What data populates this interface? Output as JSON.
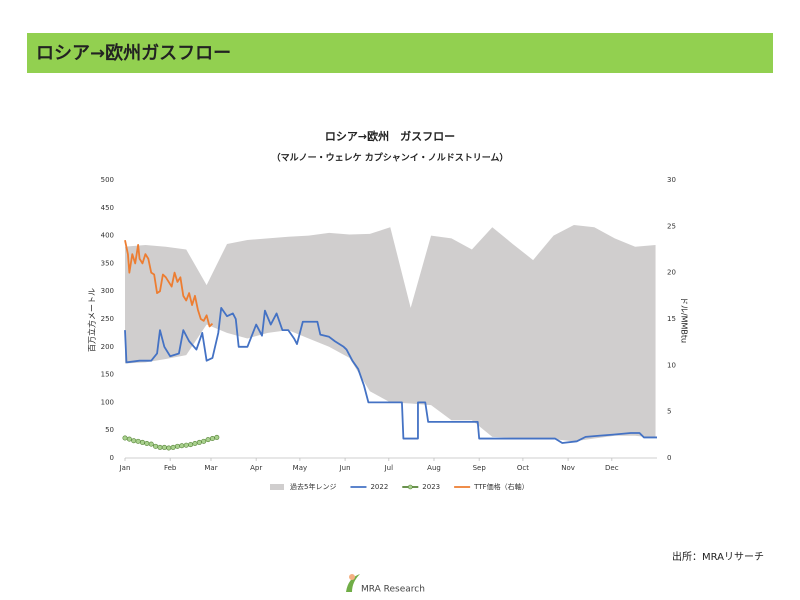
{
  "header": {
    "title": "ロシア→欧州ガスフロー"
  },
  "chart_data": {
    "type": "line",
    "title": "ロシア→欧州　ガスフロー",
    "subtitle": "（マルノー・ウェレケ カプシャンイ・ノルドストリーム）",
    "ylabel": "百万立方メートル",
    "y2label": "ドル/MMBtu",
    "xlim": [
      0,
      365
    ],
    "xticks": [
      {
        "value": 0,
        "label": "Jan"
      },
      {
        "value": 31,
        "label": "Feb"
      },
      {
        "value": 59,
        "label": "Mar"
      },
      {
        "value": 90,
        "label": "Apr"
      },
      {
        "value": 120,
        "label": "May"
      },
      {
        "value": 151,
        "label": "Jun"
      },
      {
        "value": 181,
        "label": "Jul"
      },
      {
        "value": 212,
        "label": "Aug"
      },
      {
        "value": 243,
        "label": "Sep"
      },
      {
        "value": 273,
        "label": "Oct"
      },
      {
        "value": 304,
        "label": "Nov"
      },
      {
        "value": 334,
        "label": "Dec"
      }
    ],
    "ylim": [
      0,
      500
    ],
    "yticks": [
      0,
      50,
      100,
      150,
      200,
      250,
      300,
      350,
      400,
      450,
      500
    ],
    "y2lim": [
      0,
      30
    ],
    "y2ticks": [
      0,
      5,
      10,
      15,
      20,
      25,
      30
    ],
    "legend": "bottom",
    "series": [
      {
        "name": "過去5年レンジ",
        "type": "range",
        "color": "#d0cece",
        "x": [
          0,
          14,
          28,
          42,
          56,
          70,
          84,
          98,
          112,
          126,
          140,
          154,
          168,
          182,
          196,
          210,
          224,
          238,
          252,
          266,
          280,
          294,
          308,
          322,
          336,
          350,
          364
        ],
        "high": [
          380,
          383,
          380,
          375,
          311,
          385,
          392,
          395,
          398,
          400,
          405,
          402,
          403,
          415,
          270,
          400,
          395,
          375,
          415,
          385,
          356,
          400,
          419,
          415,
          395,
          380,
          383
        ],
        "low": [
          170,
          172,
          178,
          185,
          240,
          225,
          215,
          225,
          230,
          215,
          200,
          180,
          120,
          100,
          98,
          95,
          68,
          68,
          38,
          36,
          36,
          34,
          30,
          35,
          40,
          40,
          36
        ]
      },
      {
        "name": "2022",
        "type": "line",
        "color": "#4472c4",
        "x": [
          0,
          1,
          10,
          18,
          22,
          24,
          27,
          31,
          37,
          40,
          44,
          49,
          53,
          56,
          60,
          64,
          66,
          70,
          74,
          76,
          78,
          84,
          90,
          94,
          96,
          100,
          104,
          108,
          112,
          116,
          118,
          122,
          132,
          134,
          140,
          144,
          150,
          152,
          156,
          160,
          164,
          167,
          190,
          191,
          201,
          201,
          206,
          208,
          242,
          243,
          295,
          300,
          310,
          316,
          325,
          335,
          347,
          353,
          356,
          365
        ],
        "values": [
          230,
          172,
          175,
          175,
          188,
          230,
          200,
          183,
          188,
          230,
          210,
          195,
          225,
          175,
          180,
          225,
          270,
          255,
          260,
          250,
          200,
          200,
          240,
          220,
          265,
          240,
          260,
          230,
          230,
          215,
          205,
          245,
          245,
          222,
          218,
          210,
          200,
          195,
          175,
          160,
          130,
          100,
          100,
          35,
          35,
          100,
          100,
          65,
          65,
          35,
          35,
          27,
          30,
          38,
          40,
          42,
          45,
          45,
          37,
          37
        ]
      },
      {
        "name": "2023",
        "type": "marker-line",
        "color": "#548235",
        "marker": "#a9d18e",
        "x": [
          0,
          3,
          6,
          9,
          12,
          15,
          18,
          21,
          24,
          27,
          30,
          33,
          36,
          39,
          42,
          45,
          48,
          51,
          54,
          57,
          60,
          63
        ],
        "values": [
          36,
          34,
          31,
          30,
          28,
          26,
          25,
          21,
          19,
          19,
          18,
          19,
          21,
          22,
          23,
          24,
          26,
          28,
          30,
          33,
          35,
          37
        ]
      },
      {
        "name": "TTF価格（右軸）",
        "type": "line",
        "axis": "y2",
        "color": "#ed7d31",
        "x": [
          0,
          2,
          3,
          5,
          7,
          9,
          10,
          12,
          14,
          16,
          18,
          20,
          22,
          24,
          26,
          28,
          30,
          32,
          34,
          36,
          38,
          40,
          42,
          44,
          46,
          48,
          50,
          52,
          54,
          56,
          58,
          60
        ],
        "values": [
          23.5,
          22,
          20,
          22,
          21,
          23,
          21.5,
          21,
          22,
          21.5,
          20,
          19.8,
          17.8,
          18,
          19.8,
          19.5,
          19,
          18.5,
          20,
          19,
          19.5,
          17.5,
          17,
          17.8,
          16.5,
          17.5,
          16,
          15,
          14.8,
          15.4,
          14.2,
          14.5
        ]
      }
    ]
  },
  "source": "出所：MRAリサーチ",
  "logo": "MRA Research"
}
